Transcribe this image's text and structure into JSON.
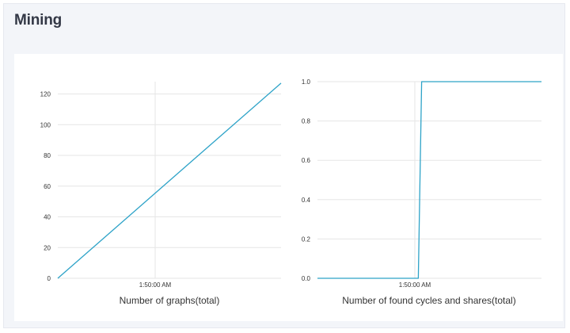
{
  "panel": {
    "title": "Mining"
  },
  "colors": {
    "series": "#2ea3c8",
    "grid": "#e6e6e6",
    "panel_bg": "#f3f5f9",
    "title": "#333846"
  },
  "chart_data": [
    {
      "type": "line",
      "title": "Number of graphs(total)",
      "xlabel": "",
      "ylabel": "",
      "x_tick_labels": [
        "1:50:00 AM"
      ],
      "y_ticks": [
        0,
        20,
        40,
        60,
        80,
        100,
        120
      ],
      "y_tick_labels": [
        "0",
        "20",
        "40",
        "60",
        "80",
        "100",
        "120"
      ],
      "ylim": [
        0,
        128
      ],
      "grid": true,
      "series": [
        {
          "points": [
            {
              "t": 0.0,
              "y": 0
            },
            {
              "t": 1.0,
              "y": 127
            }
          ]
        }
      ]
    },
    {
      "type": "line",
      "title": "Number of found cycles and shares(total)",
      "xlabel": "",
      "ylabel": "",
      "x_tick_labels": [
        "1:50:00 AM"
      ],
      "y_ticks": [
        0,
        0.2,
        0.4,
        0.6,
        0.8,
        1.0
      ],
      "y_tick_labels": [
        "0.0",
        "0.2",
        "0.4",
        "0.6",
        "0.8",
        "1.0"
      ],
      "ylim": [
        0,
        1.0
      ],
      "grid": true,
      "series": [
        {
          "points": [
            {
              "t": 0.0,
              "y": 0
            },
            {
              "t": 0.45,
              "y": 0
            },
            {
              "t": 0.465,
              "y": 1.0
            },
            {
              "t": 1.0,
              "y": 1.0
            }
          ]
        }
      ]
    }
  ]
}
